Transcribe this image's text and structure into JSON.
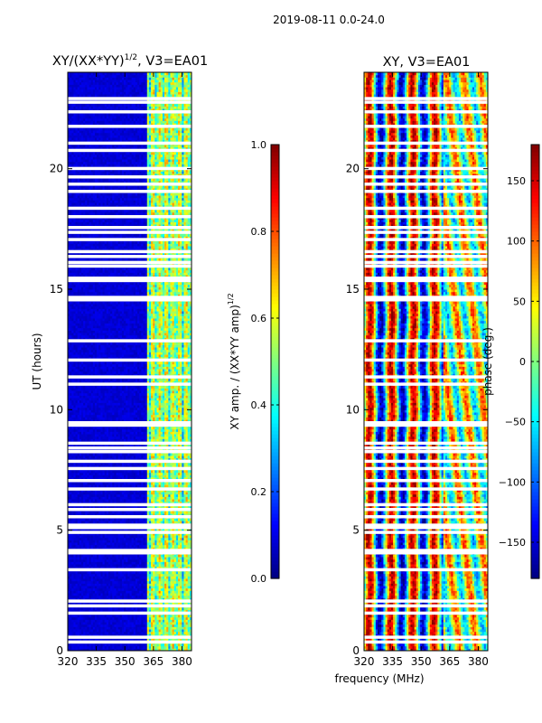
{
  "suptitle": "2019-08-11 0.0-24.0",
  "chart_data": [
    {
      "type": "heatmap",
      "title": "XY/(XX*YY)",
      "title_sup": "1/2",
      "title_tail": ", V3=EA01",
      "xlabel": "",
      "ylabel": "UT (hours)",
      "xlim": [
        320,
        385
      ],
      "ylim": [
        0,
        24
      ],
      "xticks": [
        "320",
        "335",
        "350",
        "365",
        "380"
      ],
      "xtick_values": [
        320,
        335,
        350,
        365,
        380
      ],
      "yticks": [
        "0",
        "5",
        "10",
        "15",
        "20"
      ],
      "ytick_values": [
        0,
        5,
        10,
        15,
        20
      ],
      "colormap": "jet",
      "colorbar": {
        "label": "XY amp. / (XX*YY amp)",
        "label_sup": "1/2",
        "vmin": 0.0,
        "vmax": 1.0,
        "ticks": [
          "0.0",
          "0.2",
          "0.4",
          "0.6",
          "0.8",
          "1.0"
        ],
        "tick_values": [
          0.0,
          0.2,
          0.4,
          0.6,
          0.8,
          1.0
        ]
      },
      "flagged_ut_hours": [
        0.35,
        0.55,
        1.55,
        1.85,
        2.05,
        3.35,
        4.05,
        4.15,
        4.9,
        5.1,
        5.2,
        5.55,
        5.85,
        6.05,
        6.7,
        7.05,
        7.55,
        7.85,
        8.25,
        8.4,
        8.6,
        9.35,
        9.45,
        11.05,
        11.35,
        12.05,
        12.85,
        14.55,
        14.65,
        15.35,
        15.45,
        15.95,
        16.1,
        16.35,
        16.55,
        17.05,
        17.35,
        17.55,
        18.0,
        18.35,
        19.05,
        19.35,
        19.65,
        20.0,
        20.75,
        21.05,
        21.75,
        22.35,
        22.75,
        22.9
      ]
    },
    {
      "type": "heatmap",
      "title": "XY, V3=EA01",
      "xlabel": "frequency (MHz)",
      "ylabel": "",
      "xlim": [
        320,
        385
      ],
      "ylim": [
        0,
        24
      ],
      "xticks": [
        "320",
        "335",
        "350",
        "365",
        "380"
      ],
      "xtick_values": [
        320,
        335,
        350,
        365,
        380
      ],
      "yticks": [
        "0",
        "5",
        "10",
        "15",
        "20"
      ],
      "ytick_values": [
        0,
        5,
        10,
        15,
        20
      ],
      "colormap": "jet",
      "colorbar": {
        "label": "phase (deg.)",
        "vmin": -180,
        "vmax": 180,
        "ticks": [
          "−150",
          "−100",
          "−50",
          "0",
          "50",
          "100",
          "150"
        ],
        "tick_values": [
          -150,
          -100,
          -50,
          0,
          50,
          100,
          150
        ]
      },
      "flagged_ut_hours": [
        0.35,
        0.55,
        1.55,
        1.85,
        2.05,
        3.35,
        4.05,
        4.15,
        4.9,
        5.1,
        5.2,
        5.55,
        5.85,
        6.05,
        6.7,
        7.05,
        7.55,
        7.85,
        8.25,
        8.4,
        8.6,
        9.35,
        9.45,
        11.05,
        11.35,
        12.05,
        12.85,
        14.55,
        14.65,
        15.35,
        15.45,
        15.95,
        16.1,
        16.35,
        16.55,
        17.05,
        17.35,
        17.55,
        18.0,
        18.35,
        19.05,
        19.35,
        19.65,
        20.0,
        20.75,
        21.05,
        21.75,
        22.35,
        22.75,
        22.9
      ]
    }
  ]
}
